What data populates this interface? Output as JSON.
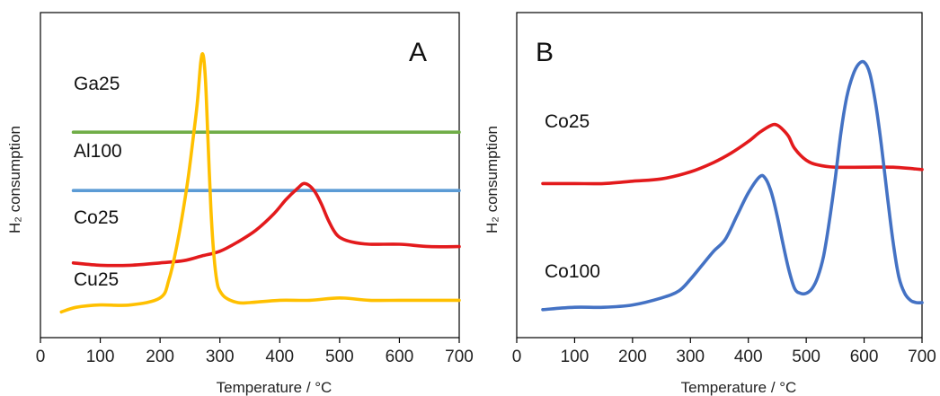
{
  "chart_data": [
    {
      "type": "line",
      "panel_label": "A",
      "xlabel": "Temperature  / °C",
      "ylabel": "H₂ consumption",
      "xlim": [
        0,
        700
      ],
      "xticks": [
        "0",
        "100",
        "200",
        "300",
        "400",
        "500",
        "600",
        "700"
      ],
      "y_ticks_shown": false,
      "grid": false,
      "legend": "inline labels",
      "series": [
        {
          "name": "Ga25",
          "color": "#70ad47",
          "x": [
            55,
            100,
            200,
            300,
            400,
            500,
            600,
            700
          ],
          "y": [
            0.88,
            0.88,
            0.88,
            0.88,
            0.88,
            0.88,
            0.88,
            0.88
          ]
        },
        {
          "name": "Al100",
          "color": "#5b9bd5",
          "x": [
            55,
            100,
            200,
            300,
            400,
            500,
            600,
            700
          ],
          "y": [
            0.63,
            0.63,
            0.63,
            0.63,
            0.63,
            0.63,
            0.63,
            0.63
          ]
        },
        {
          "name": "Co25",
          "color": "#e31a1c",
          "x": [
            55,
            100,
            150,
            200,
            240,
            270,
            300,
            330,
            360,
            390,
            410,
            430,
            440,
            450,
            460,
            470,
            480,
            490,
            500,
            520,
            550,
            600,
            650,
            700
          ],
          "y": [
            0.32,
            0.31,
            0.31,
            0.32,
            0.33,
            0.35,
            0.37,
            0.41,
            0.46,
            0.53,
            0.59,
            0.64,
            0.66,
            0.65,
            0.62,
            0.57,
            0.51,
            0.46,
            0.43,
            0.41,
            0.4,
            0.4,
            0.39,
            0.39
          ]
        },
        {
          "name": "Cu25",
          "color": "#ffc000",
          "x": [
            35,
            60,
            100,
            150,
            200,
            215,
            230,
            245,
            255,
            262,
            268,
            272,
            276,
            280,
            285,
            290,
            295,
            300,
            310,
            330,
            350,
            400,
            450,
            500,
            550,
            600,
            650,
            700
          ],
          "y": [
            0.11,
            0.13,
            0.14,
            0.14,
            0.17,
            0.25,
            0.42,
            0.65,
            0.85,
            1.0,
            1.18,
            1.21,
            1.1,
            0.85,
            0.55,
            0.35,
            0.24,
            0.2,
            0.17,
            0.15,
            0.15,
            0.16,
            0.16,
            0.17,
            0.16,
            0.16,
            0.16,
            0.16
          ]
        }
      ]
    },
    {
      "type": "line",
      "panel_label": "B",
      "xlabel": "Temperature  / °C",
      "ylabel": "H₂ consumption",
      "xlim": [
        0,
        700
      ],
      "xticks": [
        "0",
        "100",
        "200",
        "300",
        "400",
        "500",
        "600",
        "700"
      ],
      "y_ticks_shown": false,
      "grid": false,
      "legend": "inline labels",
      "series": [
        {
          "name": "Co25",
          "color": "#e31a1c",
          "x": [
            45,
            100,
            150,
            200,
            250,
            300,
            340,
            370,
            400,
            420,
            440,
            450,
            460,
            470,
            480,
            500,
            520,
            550,
            600,
            650,
            700
          ],
          "y": [
            0.66,
            0.66,
            0.66,
            0.67,
            0.68,
            0.71,
            0.75,
            0.79,
            0.84,
            0.88,
            0.91,
            0.91,
            0.89,
            0.86,
            0.81,
            0.76,
            0.74,
            0.73,
            0.73,
            0.73,
            0.72
          ]
        },
        {
          "name": "Co100",
          "color": "#4472c4",
          "x": [
            45,
            100,
            150,
            200,
            250,
            280,
            300,
            320,
            340,
            360,
            380,
            400,
            420,
            430,
            440,
            450,
            460,
            470,
            480,
            490,
            500,
            510,
            520,
            530,
            540,
            550,
            560,
            570,
            580,
            590,
            600,
            610,
            620,
            630,
            640,
            650,
            660,
            670,
            680,
            690,
            700
          ],
          "y": [
            0.12,
            0.13,
            0.13,
            0.14,
            0.17,
            0.2,
            0.25,
            0.31,
            0.37,
            0.42,
            0.52,
            0.62,
            0.69,
            0.68,
            0.62,
            0.52,
            0.4,
            0.29,
            0.21,
            0.19,
            0.19,
            0.21,
            0.26,
            0.35,
            0.5,
            0.68,
            0.88,
            1.03,
            1.12,
            1.17,
            1.18,
            1.13,
            1.0,
            0.82,
            0.61,
            0.41,
            0.26,
            0.19,
            0.16,
            0.15,
            0.15
          ]
        }
      ]
    }
  ]
}
